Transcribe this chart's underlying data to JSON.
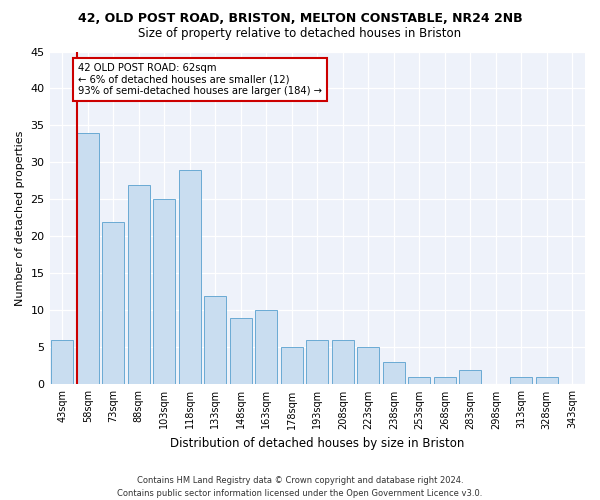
{
  "title1": "42, OLD POST ROAD, BRISTON, MELTON CONSTABLE, NR24 2NB",
  "title2": "Size of property relative to detached houses in Briston",
  "xlabel": "Distribution of detached houses by size in Briston",
  "ylabel": "Number of detached properties",
  "categories": [
    "43sqm",
    "58sqm",
    "73sqm",
    "88sqm",
    "103sqm",
    "118sqm",
    "133sqm",
    "148sqm",
    "163sqm",
    "178sqm",
    "193sqm",
    "208sqm",
    "223sqm",
    "238sqm",
    "253sqm",
    "268sqm",
    "283sqm",
    "298sqm",
    "313sqm",
    "328sqm",
    "343sqm"
  ],
  "values": [
    6,
    34,
    22,
    27,
    25,
    29,
    12,
    9,
    10,
    5,
    6,
    6,
    5,
    3,
    1,
    1,
    2,
    0,
    1,
    1,
    0
  ],
  "bar_color": "#c9ddf0",
  "bar_edge_color": "#6aaad4",
  "vline_color": "#cc0000",
  "annotation_text": "42 OLD POST ROAD: 62sqm\n← 6% of detached houses are smaller (12)\n93% of semi-detached houses are larger (184) →",
  "annotation_box_color": "#ffffff",
  "annotation_box_edge": "#cc0000",
  "footer": "Contains HM Land Registry data © Crown copyright and database right 2024.\nContains public sector information licensed under the Open Government Licence v3.0.",
  "ylim": [
    0,
    45
  ],
  "yticks": [
    0,
    5,
    10,
    15,
    20,
    25,
    30,
    35,
    40,
    45
  ],
  "bg_color": "#eef2fa"
}
